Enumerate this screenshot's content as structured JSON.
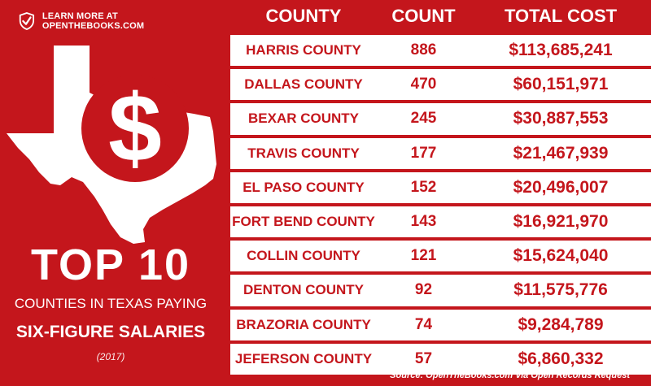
{
  "brand": {
    "text": "LEARN MORE AT OPENTHEBOOKS.COM",
    "icon": "check-shield-icon"
  },
  "hero": {
    "symbol": "$",
    "title": "TOP 10",
    "subtitle_line1": "COUNTIES IN TEXAS PAYING",
    "subtitle_line2": "SIX-FIGURE SALARIES",
    "year": "(2017)"
  },
  "table": {
    "headers": {
      "county": "COUNTY",
      "count": "COUNT",
      "total_cost": "TOTAL COST"
    },
    "rows": [
      {
        "county": "HARRIS COUNTY",
        "count": "886",
        "total_cost": "$113,685,241"
      },
      {
        "county": "DALLAS COUNTY",
        "count": "470",
        "total_cost": "$60,151,971"
      },
      {
        "county": "BEXAR COUNTY",
        "count": "245",
        "total_cost": "$30,887,553"
      },
      {
        "county": "TRAVIS COUNTY",
        "count": "177",
        "total_cost": "$21,467,939"
      },
      {
        "county": "EL PASO COUNTY",
        "count": "152",
        "total_cost": "$20,496,007"
      },
      {
        "county": "FORT BEND COUNTY",
        "count": "143",
        "total_cost": "$16,921,970"
      },
      {
        "county": "COLLIN COUNTY",
        "count": "121",
        "total_cost": "$15,624,040"
      },
      {
        "county": "DENTON COUNTY",
        "count": "92",
        "total_cost": "$11,575,776"
      },
      {
        "county": "BRAZORIA COUNTY",
        "count": "74",
        "total_cost": "$9,284,789"
      },
      {
        "county": "JEFERSON COUNTY",
        "count": "57",
        "total_cost": "$6,860,332"
      }
    ]
  },
  "source": "Source: OpenTheBooks.com Via Open Records Request",
  "colors": {
    "brand_red": "#c4161c",
    "white": "#ffffff"
  }
}
